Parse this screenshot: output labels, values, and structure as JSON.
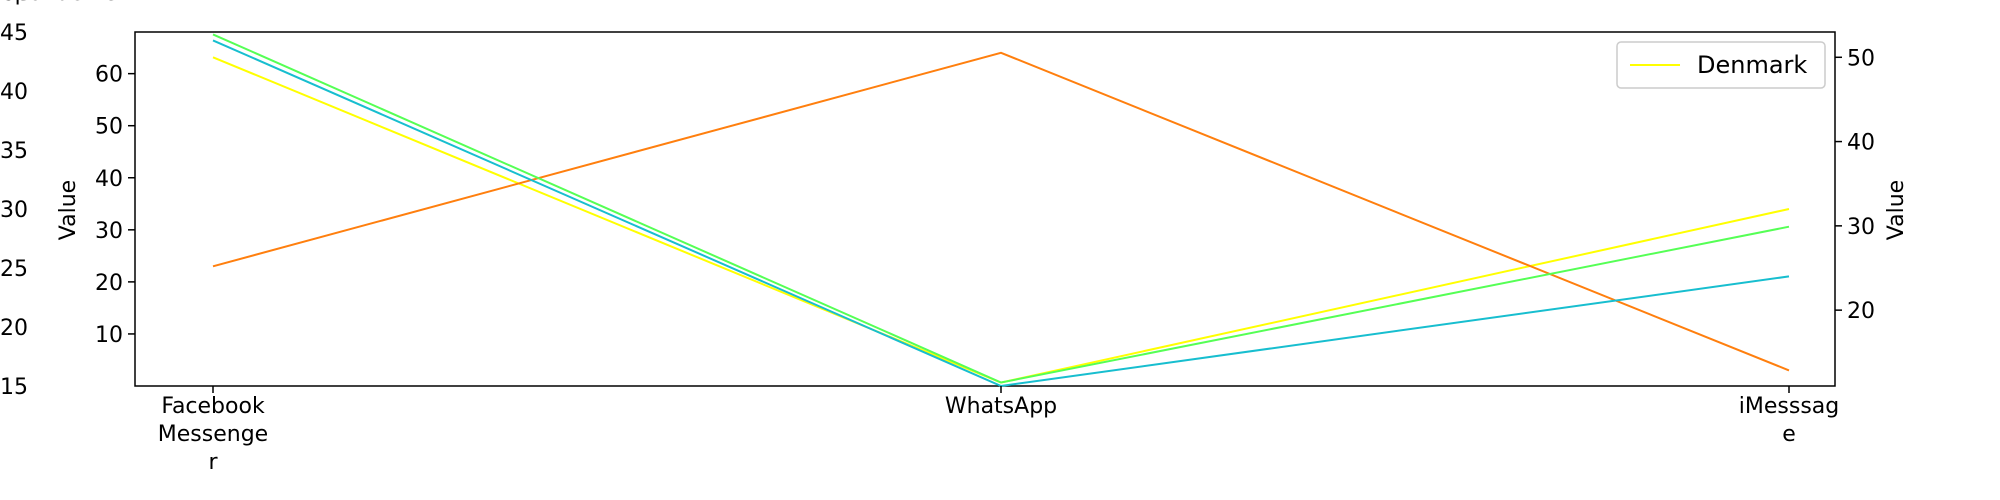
{
  "chart_data": {
    "type": "line",
    "categories": [
      "Facebook Messenger",
      "WhatsApp",
      "iMesssage"
    ],
    "category_tick_lines": [
      [
        "Facebook",
        "Messenge",
        "r"
      ],
      [
        "WhatsApp"
      ],
      [
        "iMesssag",
        "e"
      ]
    ],
    "axes": [
      {
        "id": "outer-left",
        "side": "left-outer",
        "ylim": [
          3,
          45
        ],
        "ticks": [
          10,
          20,
          30,
          40
        ],
        "label": "Share of respondents",
        "label_color": "#ffff00"
      },
      {
        "id": "left",
        "side": "left",
        "ylim": [
          0,
          68
        ],
        "ticks": [
          10,
          20,
          30,
          40,
          50,
          60
        ],
        "label": "Value",
        "label_color": "#ff7f0e"
      },
      {
        "id": "right",
        "side": "right",
        "ylim": [
          11,
          53
        ],
        "ticks": [
          20,
          30,
          40,
          50
        ],
        "label": "Value",
        "label_color": "#17becf"
      },
      {
        "id": "outer-right",
        "side": "right-outer",
        "ylim": [
          15,
          45
        ],
        "ticks": [
          15,
          20,
          25,
          30,
          35,
          40,
          45
        ],
        "label": "Value",
        "label_color": "#55ff55"
      }
    ],
    "series": [
      {
        "name": "Denmark",
        "axis": "outer-left",
        "color": "#ffff00",
        "values": [
          42,
          3.4,
          24
        ]
      },
      {
        "axis": "left",
        "color": "#ff7f0e",
        "values": [
          23,
          64,
          3
        ]
      },
      {
        "axis": "right",
        "color": "#17becf",
        "values": [
          52,
          11,
          24
        ]
      },
      {
        "axis": "outer-right",
        "color": "#55ff55",
        "values": [
          44.8,
          15.3,
          28.5
        ]
      }
    ],
    "legend": {
      "entries": [
        "Denmark"
      ],
      "placement": "top-right"
    },
    "grid": false
  }
}
